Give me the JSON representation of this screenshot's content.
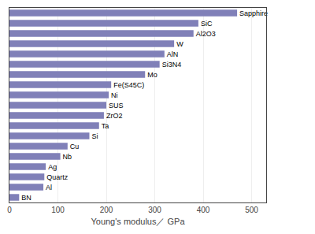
{
  "chart_data": {
    "type": "bar",
    "orientation": "horizontal",
    "categories": [
      "Sapphire",
      "SiC",
      "Al2O3",
      "W",
      "AlN",
      "Si3N4",
      "Mo",
      "Fe(S45C)",
      "Ni",
      "SUS",
      "ZrO2",
      "Ta",
      "Si",
      "Cu",
      "Nb",
      "Ag",
      "Quartz",
      "Al",
      "BN"
    ],
    "values": [
      470,
      390,
      380,
      340,
      320,
      310,
      280,
      210,
      205,
      200,
      195,
      185,
      165,
      120,
      105,
      75,
      72,
      70,
      20
    ],
    "color": "#8080b8",
    "xlabel": "Young's modulus／ GPa",
    "xlim": [
      0,
      530
    ],
    "xticks": [
      0,
      100,
      200,
      300,
      400,
      500
    ],
    "grid": true,
    "tick_labels": "x"
  }
}
